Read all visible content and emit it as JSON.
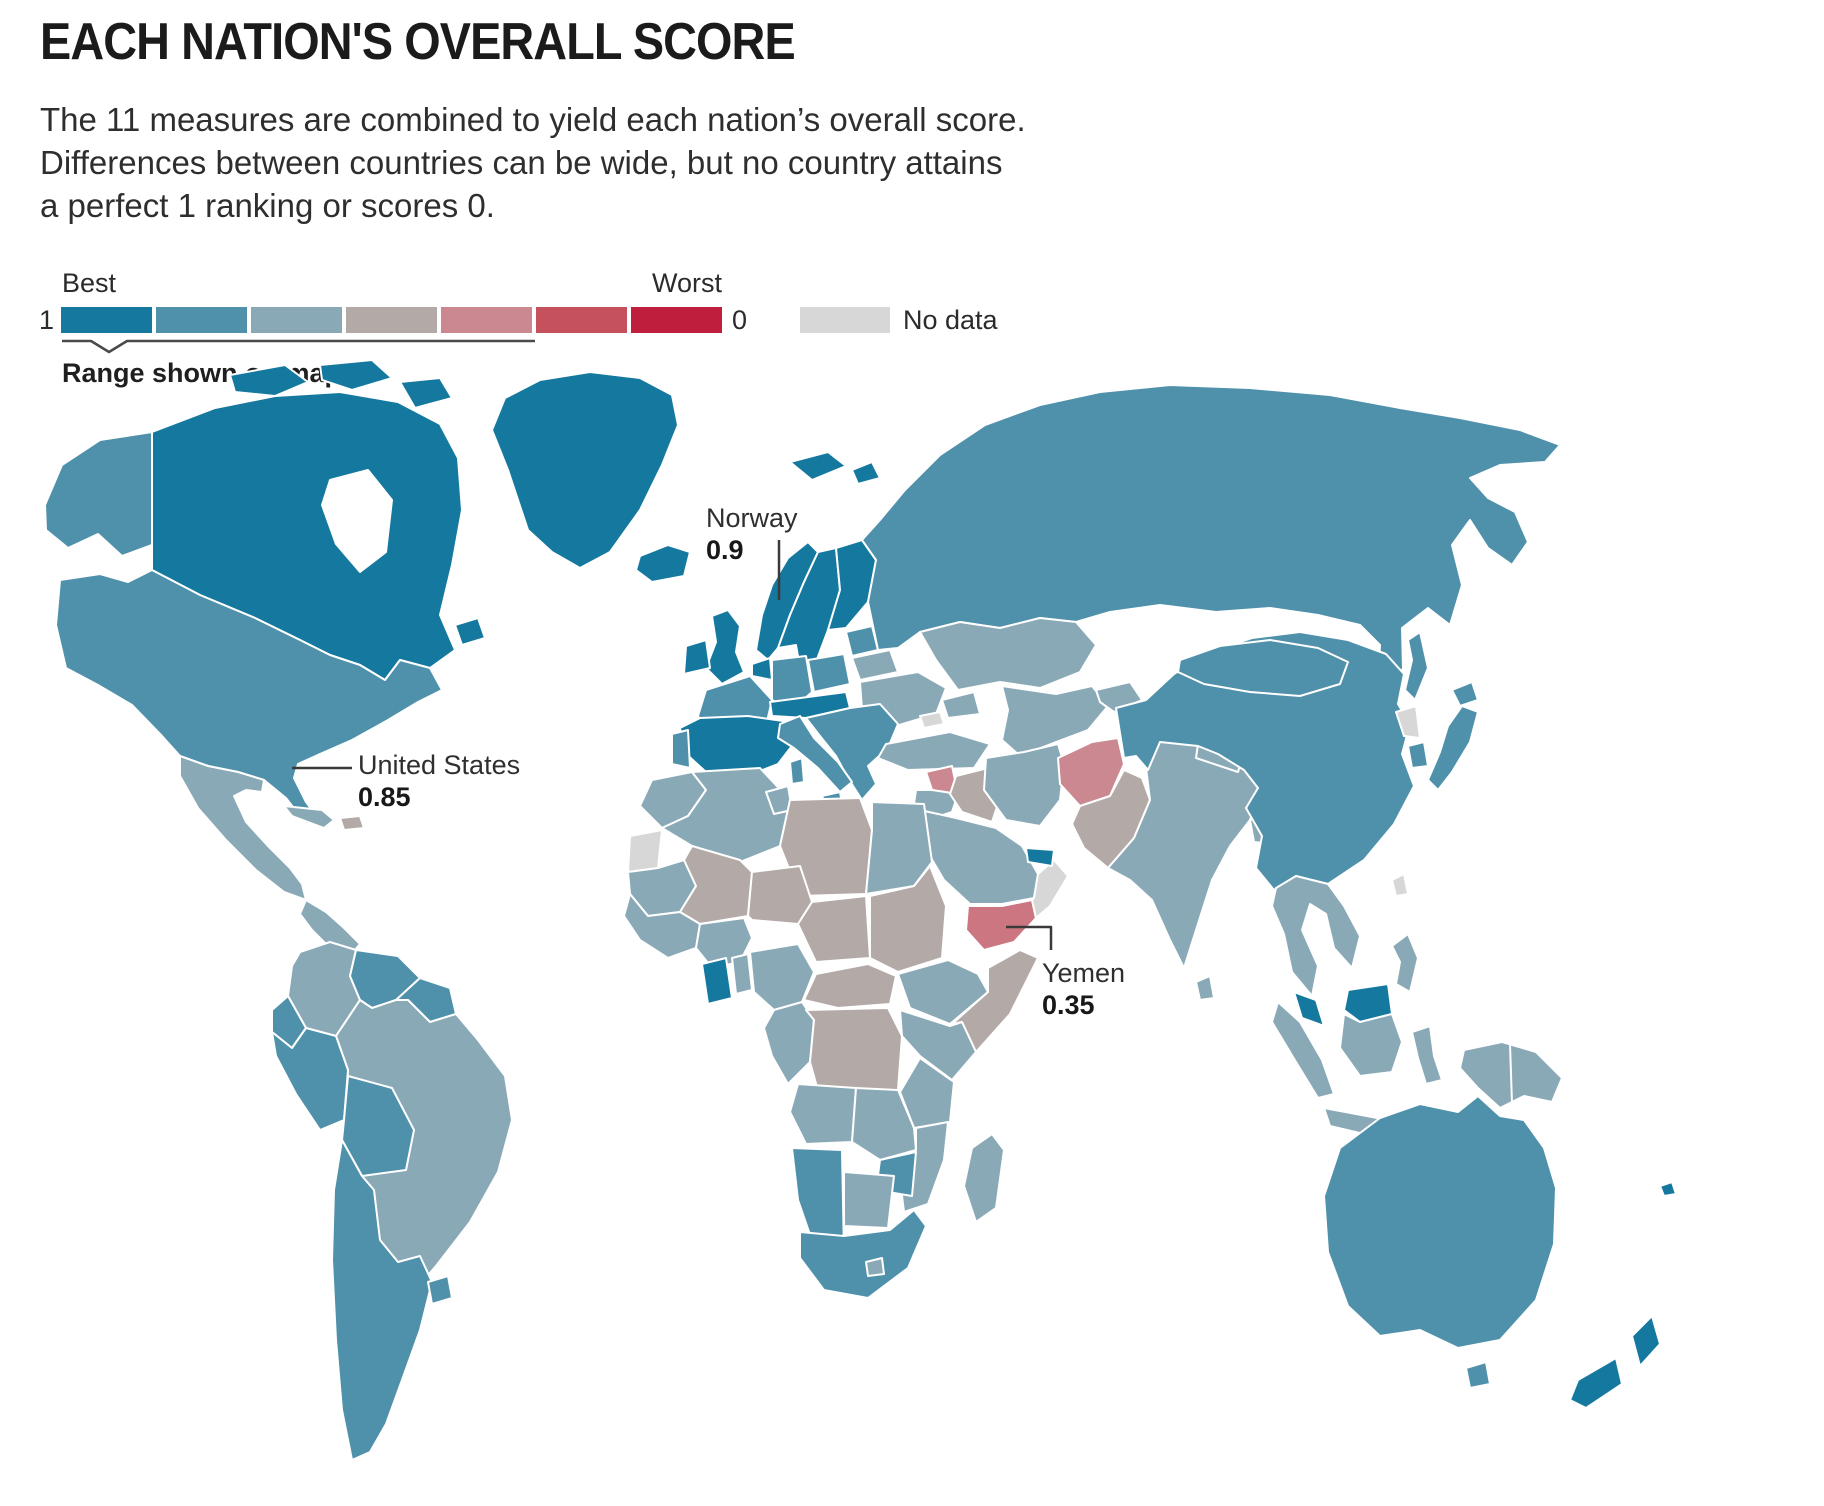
{
  "title": "EACH NATION'S OVERALL SCORE",
  "subtitle_lines": [
    "The 11 measures are combined to yield each nation’s overall score.",
    "Differences between countries can be wide, but no country attains",
    "a perfect 1 ranking or scores 0."
  ],
  "legend": {
    "best_label": "Best",
    "worst_label": "Worst",
    "scale_max": "1",
    "scale_min": "0",
    "no_data_label": "No data",
    "range_label": "Range shown on map",
    "swatches": [
      "#15799f",
      "#4f91ab",
      "#8aa9b7",
      "#b3a9a6",
      "#cb8890",
      "#c4515c",
      "#bf1f3c"
    ],
    "no_data_color": "#d7d7d7"
  },
  "annotations": [
    {
      "country": "Norway",
      "value": "0.9"
    },
    {
      "country": "United States",
      "value": "0.85"
    },
    {
      "country": "Yemen",
      "value": "0.35"
    }
  ],
  "map": {
    "region_colors": {
      "alaska": "bin2",
      "canada": "bin1",
      "newfoundland": "bin1",
      "arctic-1": "bin1",
      "arctic-2": "bin1",
      "arctic-3": "bin1",
      "greenland": "bin1",
      "svalbard-1": "bin1",
      "svalbard-2": "bin1",
      "iceland": "bin1",
      "usa": "bin2",
      "mexico": "bin3",
      "central-america": "bin3",
      "cuba": "bin3",
      "hispaniola": "bin4",
      "colombia": "bin3",
      "venezuela": "bin2",
      "guyanas": "bin2",
      "ecuador": "bin2",
      "peru": "bin2",
      "brazil": "bin3",
      "bolivia": "bin2",
      "argentina-chile": "bin2",
      "uruguay": "bin2",
      "uk": "bin1",
      "ireland": "bin1",
      "norway": "bin1",
      "sweden": "bin1",
      "finland": "bin1",
      "denmark": "bin1",
      "baltics": "bin2",
      "belarus": "bin3",
      "ukraine": "bin3",
      "crimea": "nodata",
      "poland": "bin2",
      "germany": "bin2",
      "benelux": "bin1",
      "france": "bin2",
      "spain": "bin1",
      "portugal": "bin2",
      "alps": "bin1",
      "balkans": "bin2",
      "italy": "bin2",
      "sicily": "bin2",
      "sardinia": "bin2",
      "russia": "bin2",
      "sakhalin": "bin2",
      "kazakhstan": "bin3",
      "central-asia": "bin3",
      "kyrgyz-tajik": "bin3",
      "caucasus": "bin3",
      "turkey": "bin3",
      "syria": "bin5",
      "levant": "bin3",
      "iraq": "bin4",
      "iran": "bin3",
      "saudi-arabia": "bin3",
      "yemen": "#cb7680",
      "oman": "nodata",
      "uae-qatar": "bin1",
      "afghanistan": "bin5",
      "pakistan": "bin4",
      "india": "bin3",
      "sri-lanka": "bin3",
      "nepal": "bin3",
      "bangladesh": "bin3",
      "china": "bin2",
      "mongolia": "bin2",
      "japan": "bin2",
      "hokkaido": "bin2",
      "south-korea": "bin2",
      "north-korea": "nodata",
      "taiwan": "nodata",
      "indochina": "bin3",
      "malaysia": "bin1",
      "malaysia-borneo": "bin1",
      "sumatra": "bin3",
      "java": "bin3",
      "kalimantan": "bin3",
      "sulawesi": "bin3",
      "lesser-sunda": "bin3",
      "new-guinea": "bin3",
      "philippines": "bin3",
      "australia": "bin2",
      "tasmania": "bin2",
      "nz-north": "bin1",
      "nz-south": "bin1",
      "fiji": "bin1",
      "morocco": "bin3",
      "western-sahara": "nodata",
      "algeria": "bin3",
      "tunisia": "bin3",
      "libya": "bin4",
      "egypt": "bin3",
      "mauritania": "bin3",
      "mali": "bin4",
      "niger": "bin4",
      "chad": "bin4",
      "sudan": "bin4",
      "senegal-guinea": "bin3",
      "ivory-coast": "bin3",
      "ghana": "bin1",
      "togo-benin": "bin3",
      "nigeria": "bin3",
      "cameroon-gabon": "bin3",
      "car": "bin4",
      "ethiopia": "bin3",
      "somalia": "bin4",
      "drc": "bin4",
      "kenya": "bin3",
      "tanzania": "bin3",
      "angola": "bin3",
      "zambia": "bin3",
      "mozambique": "bin3",
      "zimbabwe": "bin2",
      "namibia": "bin2",
      "botswana": "bin3",
      "south-africa": "bin2",
      "lesotho": "bin3",
      "madagascar": "bin3"
    }
  }
}
